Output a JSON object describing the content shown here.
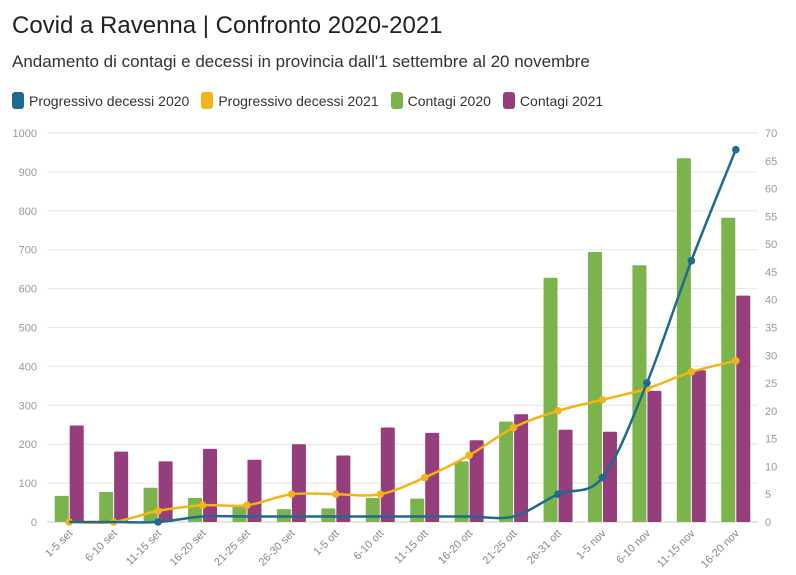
{
  "chart_data": {
    "type": "bar",
    "title": "Covid a Ravenna | Confronto 2020-2021",
    "subtitle": "Andamento di contagi e decessi in provincia dall'1 settembre al 20 novembre",
    "categories": [
      "1-5 set",
      "6-10 set",
      "11-15 set",
      "16-20 set",
      "21-25 set",
      "26-30 set",
      "1-5 ott",
      "6-10 ott",
      "11-15 ott",
      "16-20 ott",
      "21-25 ott",
      "26-31 ott",
      "1-5 nov",
      "6-10 nov",
      "11-15 nov",
      "16-20 nov"
    ],
    "series": [
      {
        "name": "Progressivo decessi 2020",
        "kind": "line",
        "axis": "right",
        "color": "#1f6a8f",
        "values": [
          0,
          0,
          0,
          1,
          1,
          1,
          1,
          1,
          1,
          1,
          1,
          5,
          8,
          25,
          47,
          67
        ]
      },
      {
        "name": "Progressivo decessi 2021",
        "kind": "line",
        "axis": "right",
        "color": "#f2b418",
        "values": [
          0,
          0,
          2,
          3,
          3,
          5,
          5,
          5,
          8,
          12,
          17,
          20,
          22,
          24,
          27,
          29
        ]
      },
      {
        "name": "Contagi 2020",
        "kind": "bar",
        "axis": "left",
        "color": "#7bb34c",
        "values": [
          67,
          77,
          88,
          62,
          40,
          33,
          35,
          62,
          60,
          156,
          258,
          628,
          694,
          660,
          935,
          782
        ]
      },
      {
        "name": "Contagi 2021",
        "kind": "bar",
        "axis": "left",
        "color": "#963e7c",
        "values": [
          248,
          181,
          156,
          188,
          160,
          200,
          171,
          243,
          229,
          210,
          277,
          237,
          232,
          337,
          390,
          582
        ]
      }
    ],
    "ylim": [
      0,
      1000
    ],
    "yticks": [
      0,
      100,
      200,
      300,
      400,
      500,
      600,
      700,
      800,
      900,
      1000
    ],
    "y2lim": [
      0,
      70
    ],
    "y2ticks": [
      0,
      5,
      10,
      15,
      20,
      25,
      30,
      35,
      40,
      45,
      50,
      55,
      60,
      65,
      70
    ],
    "grid": true,
    "legend_position": "top-left"
  }
}
